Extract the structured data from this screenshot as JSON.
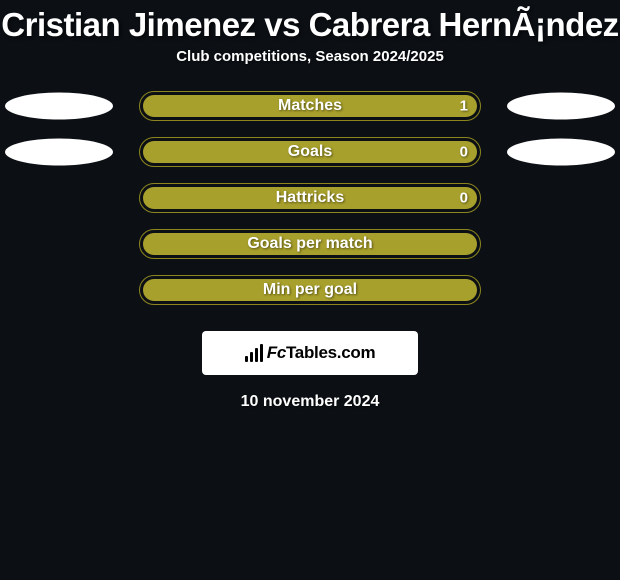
{
  "background_color": "#0c1015",
  "title": "Cristian Jimenez vs Cabrera HernÃ¡ndez",
  "title_color": "#ffffff",
  "title_fontsize": 33,
  "subtitle": "Club competitions, Season 2024/2025",
  "subtitle_color": "#ffffff",
  "subtitle_fontsize": 15,
  "player_left_color": "#ffffff",
  "player_right_color": "#ffffff",
  "pill_bar_color": "#a8a02c",
  "pill_border_color": "#8d861f",
  "pill_width": 342,
  "pill_height": 30,
  "stats": [
    {
      "label": "Matches",
      "left_value": "",
      "right_value": "1",
      "left_fill_pct": 0,
      "right_fill_pct": 100,
      "show_left_ellipse": true,
      "show_right_ellipse": true
    },
    {
      "label": "Goals",
      "left_value": "",
      "right_value": "0",
      "left_fill_pct": 0,
      "right_fill_pct": 100,
      "show_left_ellipse": true,
      "show_right_ellipse": true
    },
    {
      "label": "Hattricks",
      "left_value": "",
      "right_value": "0",
      "left_fill_pct": 0,
      "right_fill_pct": 100,
      "show_left_ellipse": false,
      "show_right_ellipse": false
    },
    {
      "label": "Goals per match",
      "left_value": "",
      "right_value": "",
      "left_fill_pct": 0,
      "right_fill_pct": 100,
      "show_left_ellipse": false,
      "show_right_ellipse": false
    },
    {
      "label": "Min per goal",
      "left_value": "",
      "right_value": "",
      "left_fill_pct": 0,
      "right_fill_pct": 100,
      "show_left_ellipse": false,
      "show_right_ellipse": false
    }
  ],
  "brand": {
    "background_color": "#ffffff",
    "text_prefix": "Fc",
    "text_rest": "Tables.com",
    "text_color": "#000000"
  },
  "date_text": "10 november 2024",
  "date_color": "#ffffff"
}
